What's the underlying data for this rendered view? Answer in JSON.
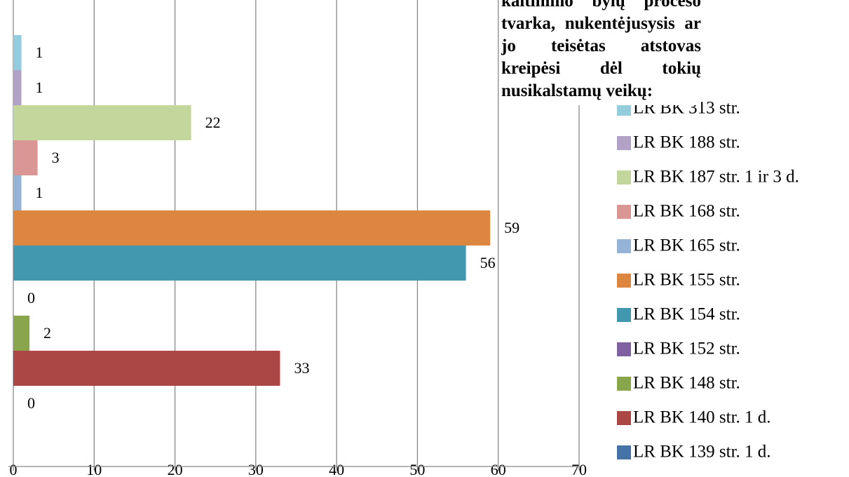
{
  "chart_data": {
    "type": "bar",
    "orientation": "horizontal",
    "title": "kaltinimo bylų proceso tvarka, nukentėjusysis ar jo teisėtas atstovas kreipėsi dėl tokių nusikalstamų veikų:",
    "series": [
      {
        "name": "LR BK 313 str.",
        "color": "#93cddd",
        "values": [
          1
        ]
      },
      {
        "name": "LR BK 188 str.",
        "color": "#b3a2c7",
        "values": [
          1
        ]
      },
      {
        "name": "LR BK 187 str. 1 ir 3 d.",
        "color": "#c3d69b",
        "values": [
          22
        ]
      },
      {
        "name": "LR BK 168 str.",
        "color": "#d99694",
        "values": [
          3
        ]
      },
      {
        "name": "LR BK 165 str.",
        "color": "#95b3d7",
        "values": [
          1
        ]
      },
      {
        "name": "LR BK 155 str.",
        "color": "#dd8640",
        "values": [
          59
        ]
      },
      {
        "name": "LR BK 154 str.",
        "color": "#4198af",
        "values": [
          56
        ]
      },
      {
        "name": "LR BK 152 str.",
        "color": "#7f60a0",
        "values": [
          0
        ]
      },
      {
        "name": "LR BK 148 str.",
        "color": "#8aa64d",
        "values": [
          2
        ]
      },
      {
        "name": "LR BK 140 str. 1 d.",
        "color": "#ab4744",
        "values": [
          33
        ]
      },
      {
        "name": "LR BK 139 str. 1 d.",
        "color": "#4572a7",
        "values": [
          0
        ]
      }
    ],
    "xlim": [
      0,
      70
    ],
    "xticks": [
      0,
      10,
      20,
      30,
      40,
      50,
      60,
      70
    ],
    "grid": true,
    "legend": "right"
  }
}
